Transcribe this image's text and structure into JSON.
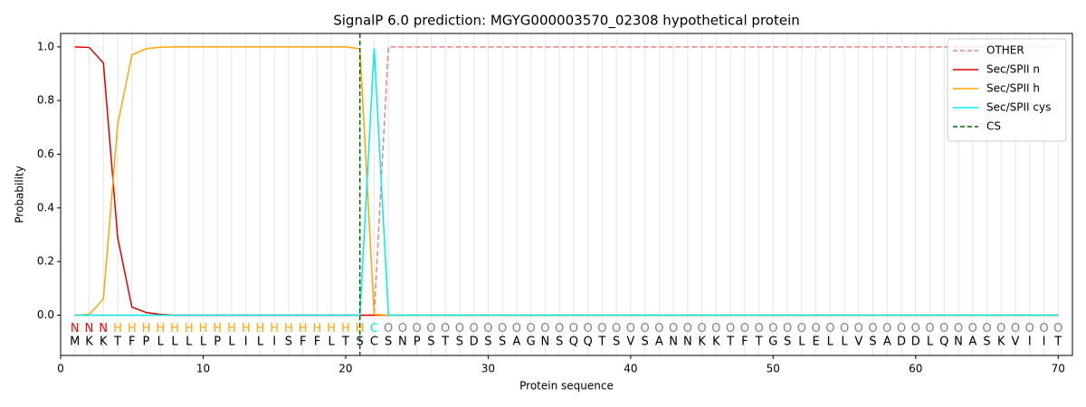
{
  "chart_data": {
    "type": "line",
    "title": "SignalP 6.0 prediction: MGYG000003570_02308 hypothetical protein",
    "xlabel": "Protein sequence",
    "ylabel": "Probability",
    "xlim": [
      0,
      71
    ],
    "ylim": [
      -0.15,
      1.05
    ],
    "xticks": [
      0,
      10,
      20,
      30,
      40,
      50,
      60,
      70
    ],
    "yticks": [
      {
        "value": 0,
        "label": "0.0"
      },
      {
        "value": 0.2,
        "label": "0.2"
      },
      {
        "value": 0.4,
        "label": "0.4"
      },
      {
        "value": 0.6,
        "label": "0.6"
      },
      {
        "value": 0.8,
        "label": "0.8"
      },
      {
        "value": 1,
        "label": "1.0"
      }
    ],
    "legend": "upper right",
    "x": [
      1,
      2,
      3,
      4,
      5,
      6,
      7,
      8,
      9,
      10,
      11,
      12,
      13,
      14,
      15,
      16,
      17,
      18,
      19,
      20,
      21,
      22,
      23,
      24,
      25,
      26,
      27,
      28,
      29,
      30,
      31,
      32,
      33,
      34,
      35,
      36,
      37,
      38,
      39,
      40,
      41,
      42,
      43,
      44,
      45,
      46,
      47,
      48,
      49,
      50,
      51,
      52,
      53,
      54,
      55,
      56,
      57,
      58,
      59,
      60,
      61,
      62,
      63,
      64,
      65,
      66,
      67,
      68,
      69,
      70
    ],
    "sequence": [
      "M",
      "K",
      "K",
      "T",
      "F",
      "P",
      "L",
      "L",
      "L",
      "L",
      "P",
      "L",
      "I",
      "L",
      "I",
      "S",
      "F",
      "F",
      "L",
      "T",
      "S",
      "C",
      "S",
      "N",
      "P",
      "S",
      "T",
      "S",
      "D",
      "S",
      "S",
      "A",
      "G",
      "N",
      "S",
      "Q",
      "Q",
      "T",
      "S",
      "V",
      "S",
      "A",
      "N",
      "N",
      "K",
      "K",
      "T",
      "F",
      "T",
      "G",
      "S",
      "L",
      "E",
      "L",
      "L",
      "V",
      "S",
      "A",
      "D",
      "D",
      "L",
      "Q",
      "N",
      "A",
      "S",
      "K",
      "V",
      "I",
      "I",
      "T"
    ],
    "residue_labels": [
      "N",
      "N",
      "N",
      "H",
      "H",
      "H",
      "H",
      "H",
      "H",
      "H",
      "H",
      "H",
      "H",
      "H",
      "H",
      "H",
      "H",
      "H",
      "H",
      "H",
      "H",
      "C",
      "O",
      "O",
      "O",
      "O",
      "O",
      "O",
      "O",
      "O",
      "O",
      "O",
      "O",
      "O",
      "O",
      "O",
      "O",
      "O",
      "O",
      "O",
      "O",
      "O",
      "O",
      "O",
      "O",
      "O",
      "O",
      "O",
      "O",
      "O",
      "O",
      "O",
      "O",
      "O",
      "O",
      "O",
      "O",
      "O",
      "O",
      "O",
      "O",
      "O",
      "O",
      "O",
      "O",
      "O",
      "O",
      "O",
      "O",
      "O"
    ],
    "residue_label_colors": {
      "N": "#ff0000",
      "H": "#ffa500",
      "C": "#00e5ee",
      "O": "#808080"
    },
    "series": [
      {
        "name": "OTHER",
        "color": "#f08080",
        "dashed": true,
        "values": [
          0,
          0,
          0,
          0,
          0,
          0,
          0,
          0,
          0,
          0,
          0,
          0,
          0,
          0,
          0,
          0,
          0,
          0,
          0,
          0,
          0,
          0,
          1,
          1,
          1,
          1,
          1,
          1,
          1,
          1,
          1,
          1,
          1,
          1,
          1,
          1,
          1,
          1,
          1,
          1,
          1,
          1,
          1,
          1,
          1,
          1,
          1,
          1,
          1,
          1,
          1,
          1,
          1,
          1,
          1,
          1,
          1,
          1,
          1,
          1,
          1,
          1,
          1,
          1,
          1,
          1,
          1,
          1,
          1,
          1
        ]
      },
      {
        "name": "Sec/SPII n",
        "color": "#e00000",
        "values": [
          1,
          0.998,
          0.94,
          0.29,
          0.03,
          0.01,
          0.003,
          0,
          0,
          0,
          0,
          0,
          0,
          0,
          0,
          0,
          0,
          0,
          0,
          0,
          0,
          0,
          0,
          0,
          0,
          0,
          0,
          0,
          0,
          0,
          0,
          0,
          0,
          0,
          0,
          0,
          0,
          0,
          0,
          0,
          0,
          0,
          0,
          0,
          0,
          0,
          0,
          0,
          0,
          0,
          0,
          0,
          0,
          0,
          0,
          0,
          0,
          0,
          0,
          0,
          0,
          0,
          0,
          0,
          0,
          0,
          0,
          0,
          0,
          0
        ]
      },
      {
        "name": "Sec/SPII h",
        "color": "#ffa500",
        "values": [
          0,
          0.003,
          0.06,
          0.71,
          0.97,
          0.993,
          0.999,
          1,
          1,
          1,
          1,
          1,
          1,
          1,
          1,
          1,
          1,
          1,
          1,
          1,
          0.993,
          0.003,
          0,
          0,
          0,
          0,
          0,
          0,
          0,
          0,
          0,
          0,
          0,
          0,
          0,
          0,
          0,
          0,
          0,
          0,
          0,
          0,
          0,
          0,
          0,
          0,
          0,
          0,
          0,
          0,
          0,
          0,
          0,
          0,
          0,
          0,
          0,
          0,
          0,
          0,
          0,
          0,
          0,
          0,
          0,
          0,
          0,
          0,
          0,
          0
        ]
      },
      {
        "name": "Sec/SPII cys",
        "color": "#00eeee",
        "values": [
          0,
          0,
          0,
          0,
          0,
          0,
          0,
          0,
          0,
          0,
          0,
          0,
          0,
          0,
          0,
          0,
          0,
          0,
          0,
          0,
          0,
          0.995,
          0,
          0,
          0,
          0,
          0,
          0,
          0,
          0,
          0,
          0,
          0,
          0,
          0,
          0,
          0,
          0,
          0,
          0,
          0,
          0,
          0,
          0,
          0,
          0,
          0,
          0,
          0,
          0,
          0,
          0,
          0,
          0,
          0,
          0,
          0,
          0,
          0,
          0,
          0,
          0,
          0,
          0,
          0,
          0,
          0,
          0,
          0,
          0
        ]
      }
    ],
    "cleavage_site": {
      "name": "CS",
      "x": 21,
      "color": "#006400"
    }
  }
}
